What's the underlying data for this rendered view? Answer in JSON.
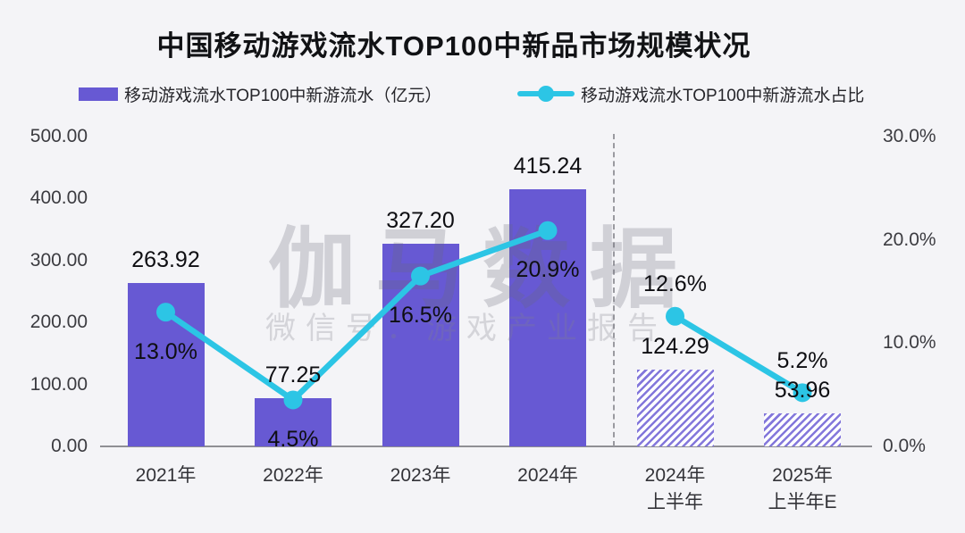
{
  "title": "中国移动游戏流水TOP100中新品市场规模状况",
  "legend": [
    {
      "label": "移动游戏流水TOP100中新游流水（亿元）",
      "type": "bar",
      "color": "#6759D3"
    },
    {
      "label": "移动游戏流水TOP100中新游流水占比",
      "type": "line",
      "color": "#2CC5E5"
    }
  ],
  "watermark": {
    "line1": "伽马数据",
    "line2": "微信号：游戏产业报告"
  },
  "colors": {
    "bar": "#6759D3",
    "bar_hatch": "#8377DB",
    "line": "#2CC5E5",
    "background": "#f4f4f7",
    "axis": "#8f8f94"
  },
  "chart_data": {
    "type": "bar",
    "title": "中国移动游戏流水TOP100中新品市场规模状况",
    "categories": [
      "2021年",
      "2022年",
      "2023年",
      "2024年",
      "2024年\n上半年",
      "2025年\n上半年E"
    ],
    "series": [
      {
        "name": "移动游戏流水TOP100中新游流水（亿元）",
        "type": "bar",
        "axis": "left",
        "values": [
          263.92,
          77.25,
          327.2,
          415.24,
          124.29,
          53.96
        ],
        "value_labels": [
          "263.92",
          "77.25",
          "327.20",
          "415.24",
          "124.29",
          "53.96"
        ],
        "hatched": [
          false,
          false,
          false,
          false,
          true,
          true
        ]
      },
      {
        "name": "移动游戏流水TOP100中新游流水占比",
        "type": "line",
        "axis": "right",
        "values": [
          13.0,
          4.5,
          16.5,
          20.9,
          12.6,
          5.2
        ],
        "value_labels": [
          "13.0%",
          "4.5%",
          "16.5%",
          "20.9%",
          "12.6%",
          "5.2%"
        ],
        "label_positions": [
          "below",
          "below",
          "below",
          "below",
          "above",
          "above"
        ],
        "segments": [
          [
            0,
            1,
            2,
            3
          ],
          [
            4,
            5
          ]
        ]
      }
    ],
    "left_axis": {
      "ticks": [
        "500.00",
        "400.00",
        "300.00",
        "200.00",
        "100.00",
        "0.00"
      ],
      "min": 0,
      "max": 500
    },
    "right_axis": {
      "ticks": [
        "30.0%",
        "20.0%",
        "10.0%",
        "0.0%"
      ],
      "min": 0,
      "max": 30
    },
    "separator_after_index": 3,
    "grid": false,
    "legend_position": "top"
  }
}
